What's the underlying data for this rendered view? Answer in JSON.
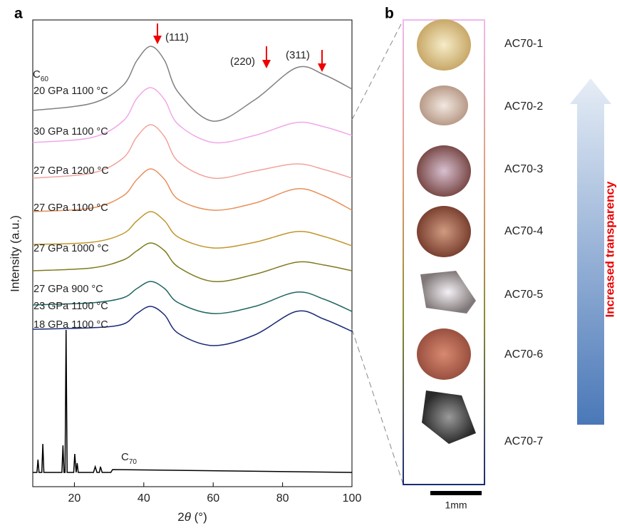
{
  "chart_data": {
    "type": "line",
    "panel_labels": [
      "a",
      "b"
    ],
    "ylabel": "Intensity (a.u.)",
    "xlabel_parts": [
      "2",
      "θ",
      " (°)"
    ],
    "xlim": [
      8,
      100
    ],
    "xticks": [
      20,
      40,
      60,
      80,
      100
    ],
    "ylim": [
      0,
      650
    ],
    "x": [
      8,
      25,
      34,
      38,
      42,
      46,
      50,
      60,
      72,
      84,
      92,
      100
    ],
    "series": [
      {
        "name": "20 GPa 1100 °C",
        "color": "#808080",
        "values": [
          528,
          538,
          563,
          598,
          618,
          598,
          553,
          513,
          543,
          588,
          578,
          558
        ]
      },
      {
        "name": "30 GPa 1100 °C",
        "color": "#f0a8e8",
        "values": [
          483,
          490,
          513,
          545,
          560,
          543,
          508,
          483,
          493,
          511,
          505,
          493
        ]
      },
      {
        "name": "27 GPa 1200 °C",
        "color": "#f2a39a",
        "values": [
          433,
          440,
          461,
          491,
          508,
          491,
          456,
          433,
          443,
          453,
          445,
          433
        ]
      },
      {
        "name": "27 GPa 1100 °C",
        "color": "#e8905a",
        "values": [
          386,
          391,
          408,
          431,
          446,
          431,
          403,
          388,
          398,
          418,
          408,
          388
        ]
      },
      {
        "name": "27 GPa 1000 °C",
        "color": "#c0962e",
        "values": [
          340,
          343,
          355,
          373,
          386,
          373,
          350,
          335,
          343,
          358,
          351,
          338
        ]
      },
      {
        "name": "27 GPa 900 °C",
        "color": "#7e7a1e",
        "values": [
          303,
          307,
          318,
          331,
          342,
          331,
          308,
          288,
          298,
          315,
          311,
          303
        ]
      },
      {
        "name": "23 GPa 1100 °C",
        "color": "#1f6660",
        "values": [
          255,
          258,
          265,
          278,
          288,
          278,
          258,
          243,
          253,
          273,
          263,
          246
        ]
      },
      {
        "name": "18 GPa 1100 °C",
        "color": "#1a2a78",
        "values": [
          221,
          223,
          228,
          243,
          253,
          241,
          215,
          198,
          213,
          246,
          235,
          218
        ]
      },
      {
        "color": "#000000",
        "x": [
          8,
          9.2,
          9.5,
          9.8,
          10.6,
          10.9,
          11.2,
          16.4,
          16.7,
          17.0,
          17.3,
          17.6,
          17.9,
          19.8,
          20.1,
          20.5,
          20.8,
          21.1,
          21.5,
          25.5,
          26,
          26.5,
          27.2,
          27.5,
          28,
          30.5,
          31,
          100
        ],
        "values": [
          20,
          20,
          38,
          20,
          20,
          60,
          20,
          20,
          58,
          20,
          20,
          220,
          20,
          20,
          46,
          20,
          33,
          20,
          20,
          20,
          28,
          20,
          20,
          28,
          20,
          20,
          24,
          20
        ]
      }
    ],
    "annotations": [
      {
        "text": "(111)"
      },
      {
        "text": "(220)"
      },
      {
        "text": "(311)"
      },
      {
        "text": "C",
        "sub": "60"
      },
      {
        "text": "C",
        "sub": "70"
      }
    ],
    "samples": [
      "AC70-1",
      "AC70-2",
      "AC70-3",
      "AC70-4",
      "AC70-5",
      "AC70-6",
      "AC70-7"
    ],
    "scale_bar": "1mm",
    "arrow_label": "Increased transparency"
  }
}
